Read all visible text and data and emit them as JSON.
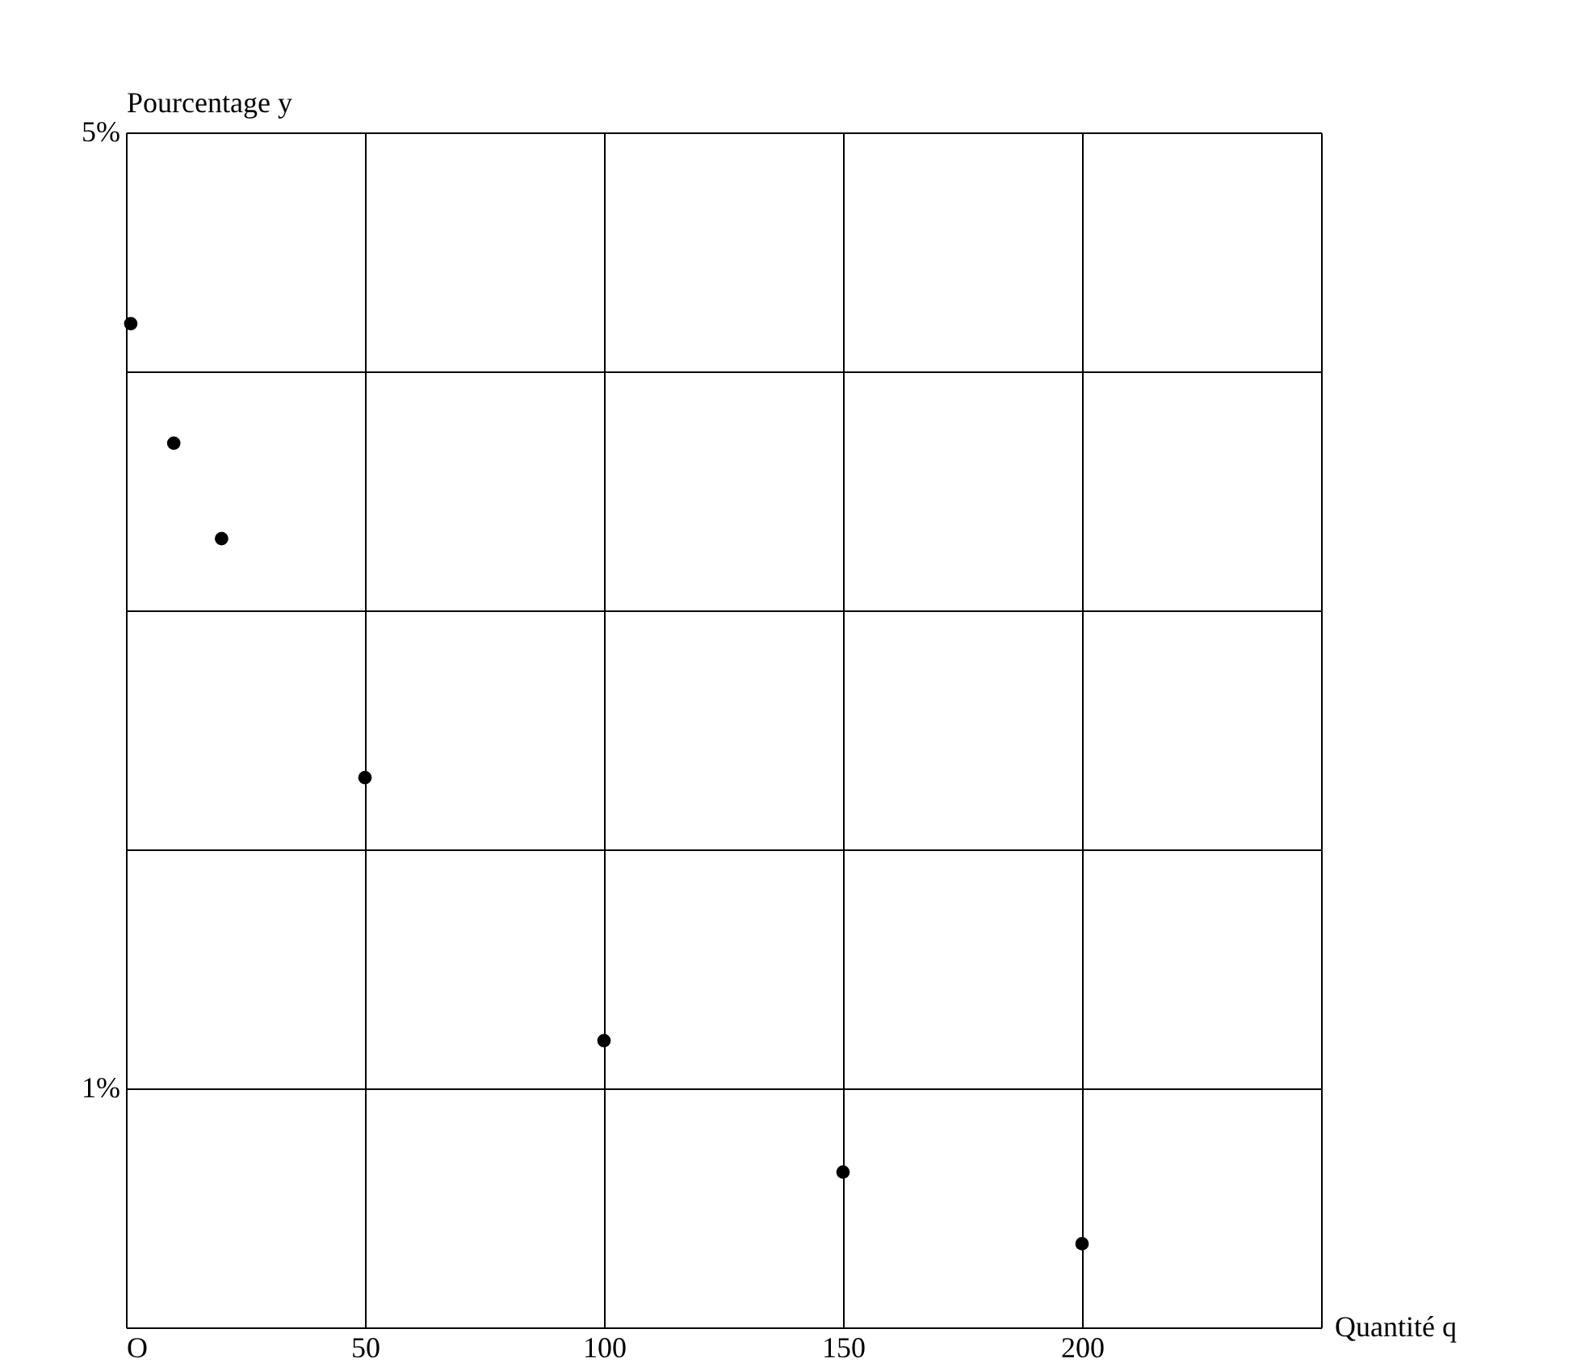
{
  "chart_data": {
    "type": "scatter",
    "xlabel": "Quantité q",
    "ylabel": "Pourcentage y",
    "x": [
      1,
      10,
      20,
      50,
      100,
      150,
      200
    ],
    "series": [
      {
        "color": "#000000",
        "values": [
          4.2,
          3.7,
          3.3,
          2.3,
          1.2,
          0.65,
          0.35
        ]
      }
    ],
    "xlim": [
      0,
      250
    ],
    "ylim": [
      0,
      5
    ],
    "xticks": [
      {
        "value": 0,
        "label": "O"
      },
      50,
      100,
      150,
      200,
      {
        "value": 250,
        "label": null
      }
    ],
    "yticks": [
      {
        "value": 0,
        "label": null
      },
      {
        "value": 1,
        "label": "1%"
      },
      {
        "value": 2,
        "label": null
      },
      {
        "value": 3,
        "label": null
      },
      {
        "value": 4,
        "label": null
      },
      {
        "value": 5,
        "label": "5%"
      }
    ],
    "grid": true,
    "marker": "circle"
  }
}
